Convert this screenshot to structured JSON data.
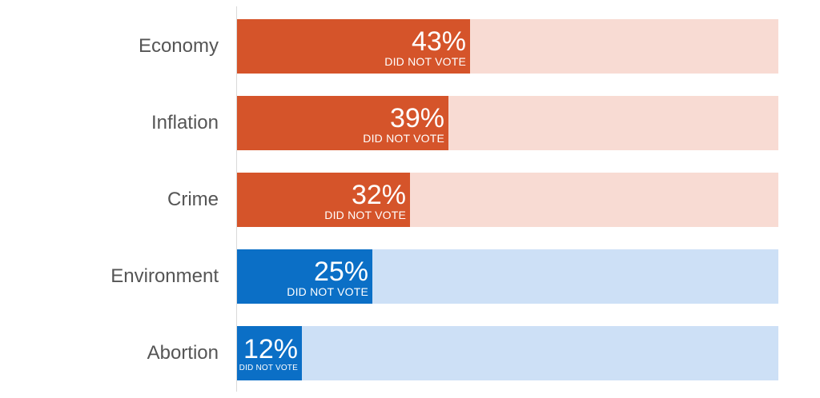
{
  "chart_data": {
    "type": "bar",
    "orientation": "horizontal",
    "categories": [
      "Economy",
      "Inflation",
      "Crime",
      "Environment",
      "Abortion"
    ],
    "values": [
      43,
      39,
      32,
      25,
      12
    ],
    "value_labels": [
      "43%",
      "39%",
      "32%",
      "25%",
      "12%"
    ],
    "sublabel": "DID NOT VOTE",
    "xlim": [
      0,
      100
    ],
    "grid": false,
    "legend": "none",
    "colors": {
      "fill": [
        "#d5542a",
        "#d5542a",
        "#d5542a",
        "#0b6fc6",
        "#0b6fc6"
      ],
      "track": [
        "#f8dbd3",
        "#f8dbd3",
        "#f8dbd3",
        "#cde0f6",
        "#cde0f6"
      ],
      "label_text": "#555555",
      "value_text": "#ffffff",
      "axis": "#d9d9d9"
    }
  }
}
